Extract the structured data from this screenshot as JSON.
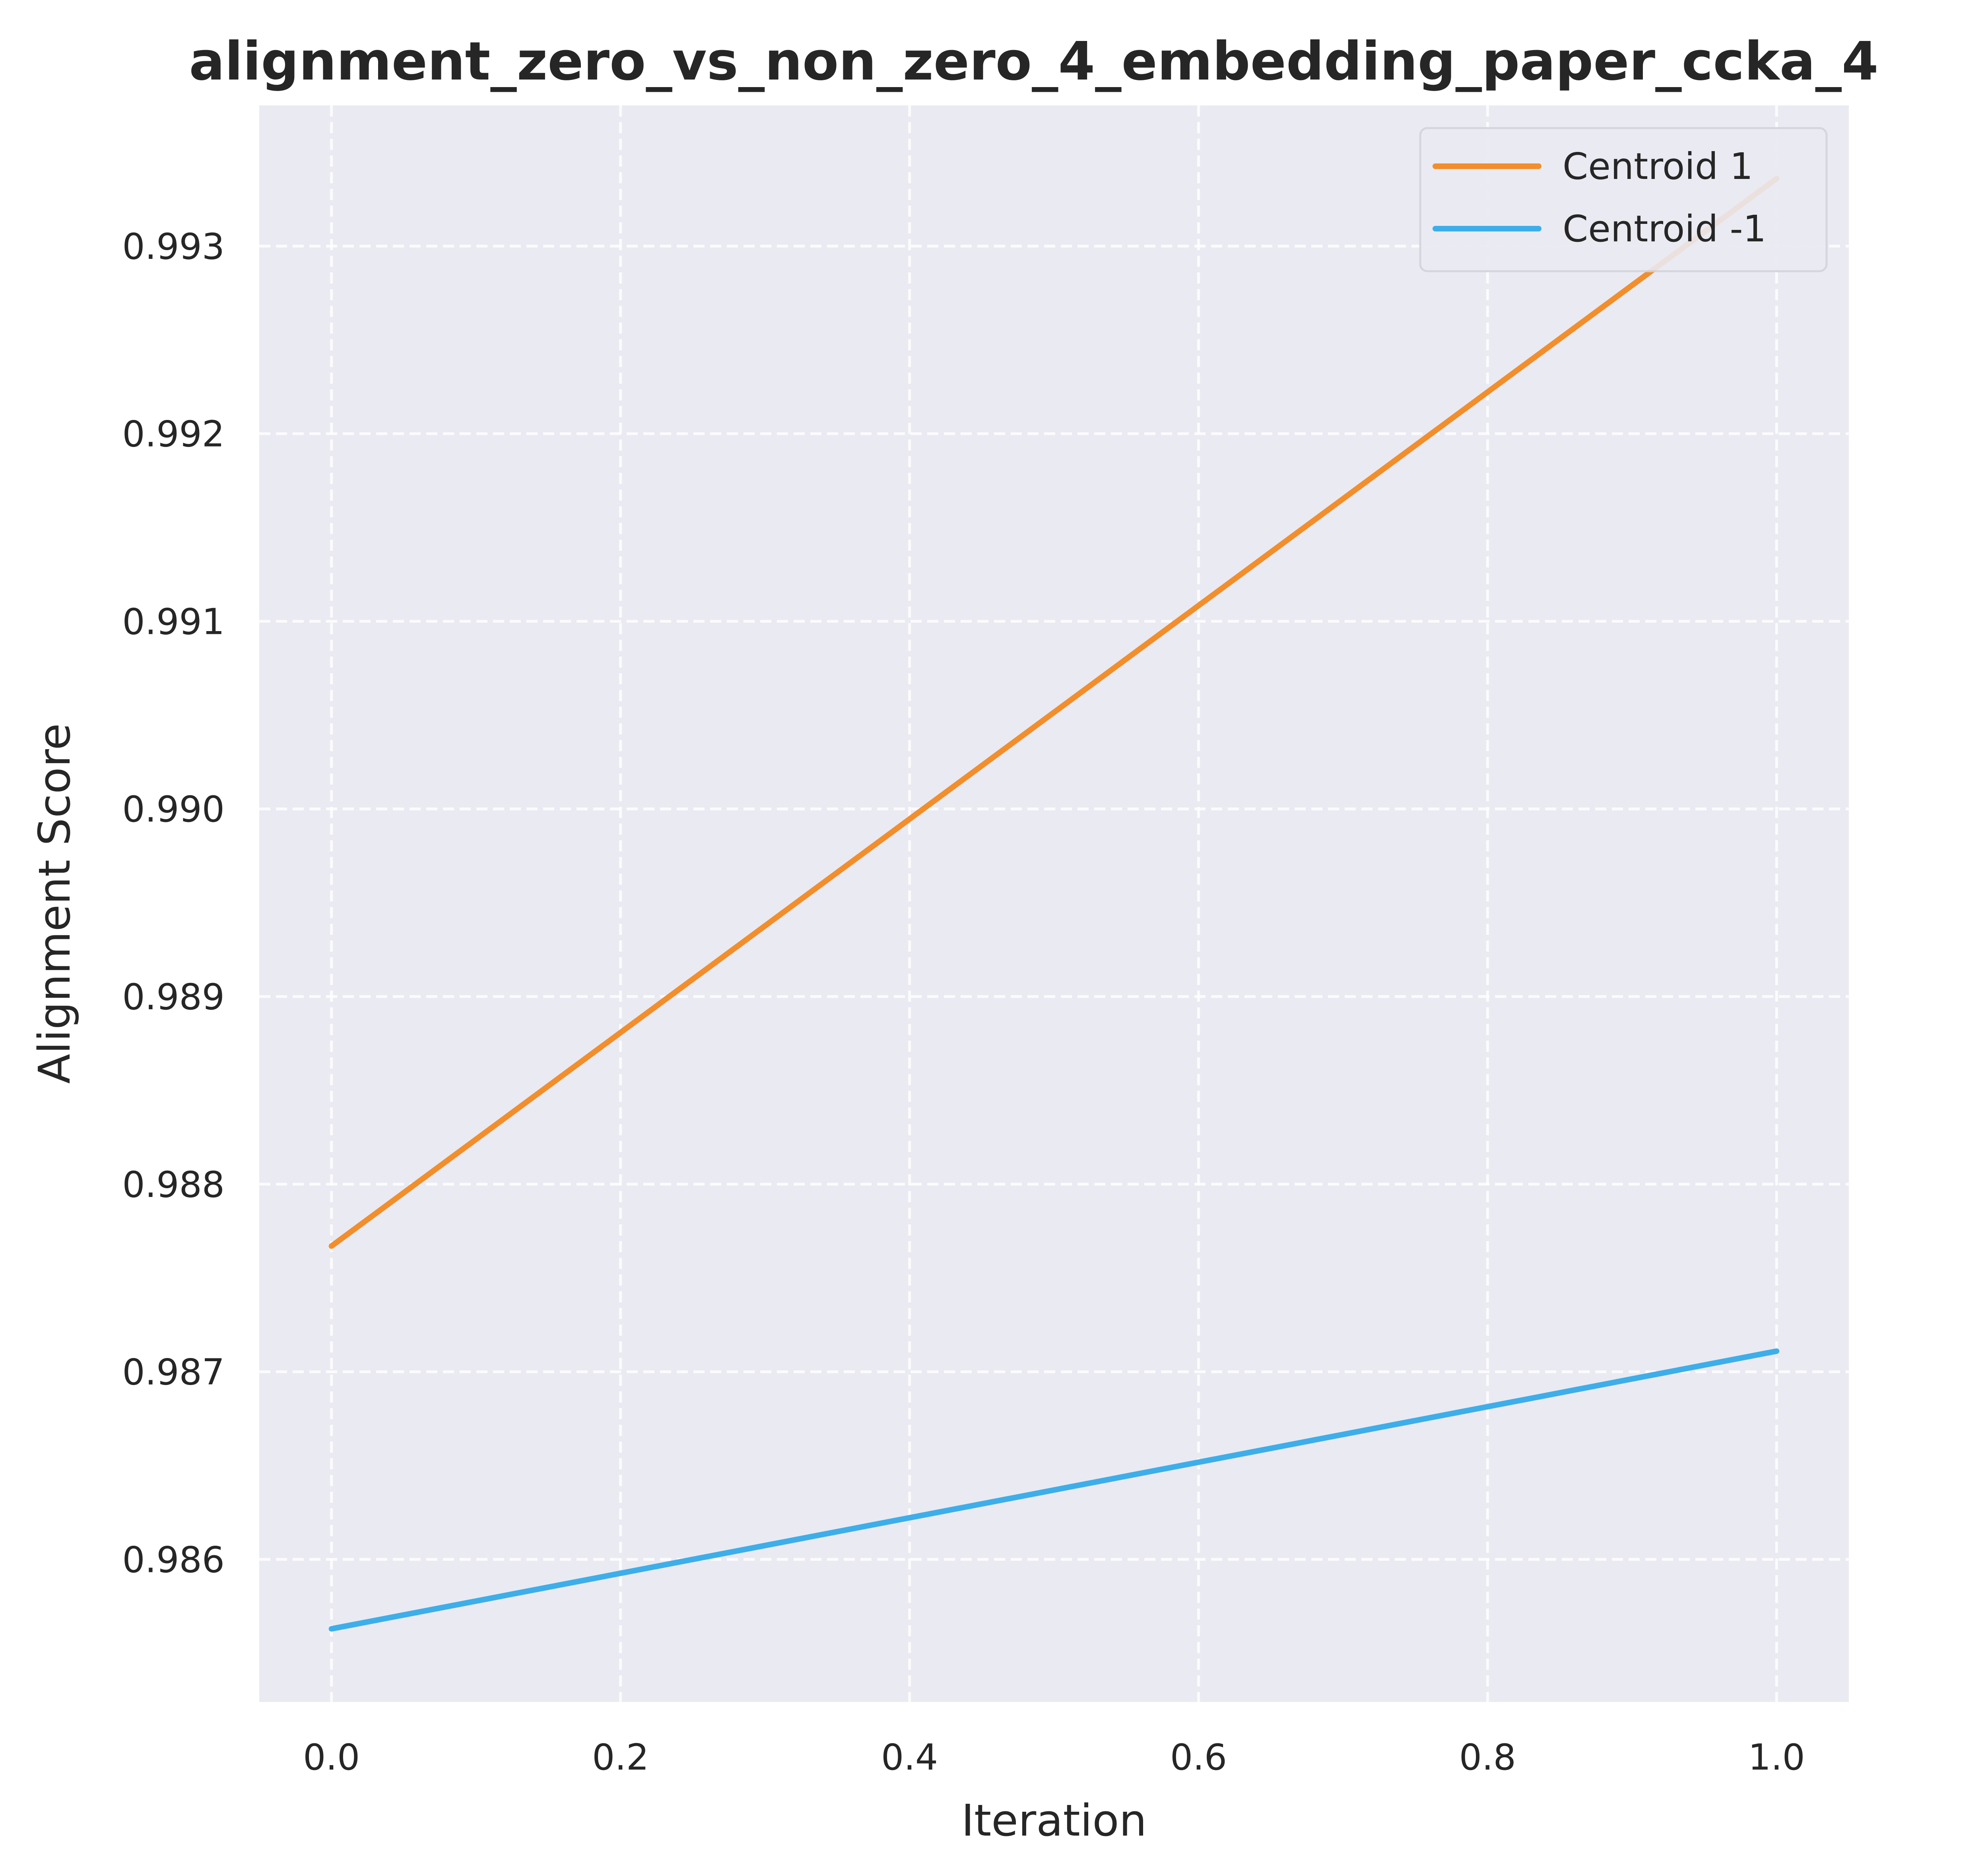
{
  "chart_data": {
    "type": "line",
    "title": "alignment_zero_vs_non_zero_4_embedding_paper_ccka_4",
    "xlabel": "Iteration",
    "ylabel": "Alignment Score",
    "x": [
      0.0,
      1.0
    ],
    "xlim": [
      -0.05,
      1.05
    ],
    "ylim": [
      0.98524,
      0.99375
    ],
    "xticks": [
      0.0,
      0.2,
      0.4,
      0.6,
      0.8,
      1.0
    ],
    "xtick_labels": [
      "0.0",
      "0.2",
      "0.4",
      "0.6",
      "0.8",
      "1.0"
    ],
    "yticks": [
      0.986,
      0.987,
      0.988,
      0.989,
      0.99,
      0.991,
      0.992,
      0.993
    ],
    "ytick_labels": [
      "0.986",
      "0.987",
      "0.988",
      "0.989",
      "0.990",
      "0.991",
      "0.992",
      "0.993"
    ],
    "grid": true,
    "legend_position": "top-right",
    "series": [
      {
        "name": "Centroid 1",
        "values": [
          0.98767,
          0.99336
        ],
        "color": "#f28e2b"
      },
      {
        "name": "Centroid -1",
        "values": [
          0.98563,
          0.98711
        ],
        "color": "#3daee9"
      }
    ],
    "colors": {
      "plot_background": "#eaeaf2",
      "grid": "#ffffff",
      "text": "#262626"
    }
  }
}
